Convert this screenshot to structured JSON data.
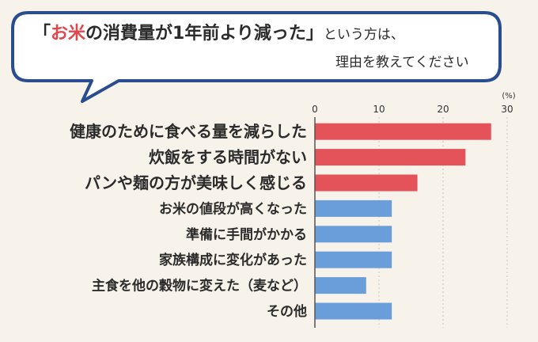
{
  "header": {
    "bracket_open": "「",
    "accent_text": "お米",
    "quote_rest": "の消費量が1年前より減った」",
    "tail1": "という方は、",
    "tail2": "理由を教えてください"
  },
  "colors": {
    "primary": "#e5535a",
    "secondary": "#6a9edb",
    "accent": "#e0474c",
    "bubble_border": "#2a4d8f"
  },
  "chart_data": {
    "type": "bar",
    "orientation": "horizontal",
    "unit_label": "(%)",
    "xlim": [
      0,
      30
    ],
    "xticks": [
      "0",
      "10",
      "20",
      "30"
    ],
    "grid": false,
    "categories": [
      "健康のために食べる量を減らした",
      "炊飯をする時間がない",
      "パンや麺の方が美味しく感じる",
      "お米の値段が高くなった",
      "準備に手間がかかる",
      "家族構成に変化があった",
      "主食を他の穀物に変えた（麦など）",
      "その他"
    ],
    "values": [
      27.5,
      23.5,
      16,
      12,
      12,
      12,
      8,
      12
    ],
    "highlight": [
      true,
      true,
      true,
      false,
      false,
      false,
      false,
      false
    ]
  }
}
